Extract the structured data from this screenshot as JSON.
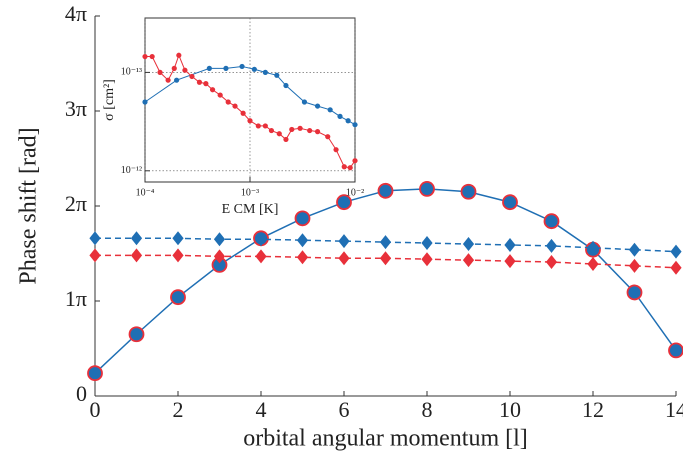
{
  "chart_data": [
    {
      "type": "line",
      "x_label": "orbital angular momentum [l]",
      "y_label": "Phase shift [rad]",
      "x": [
        0,
        1,
        2,
        3,
        4,
        5,
        6,
        7,
        8,
        9,
        10,
        11,
        12,
        13,
        14
      ],
      "xlim": [
        0,
        14
      ],
      "xticks": [
        0,
        2,
        4,
        6,
        8,
        10,
        12,
        14
      ],
      "ylim": [
        0,
        4
      ],
      "yticks": [
        0,
        {
          "value": 1,
          "label": "1π"
        },
        {
          "value": 2,
          "label": "2π"
        },
        {
          "value": 3,
          "label": "3π"
        },
        {
          "value": 4,
          "label": "4π"
        }
      ],
      "grid": false,
      "series": [
        {
          "color": "#1f6fb4",
          "edgecolor": "#e8303a",
          "marker": "circle",
          "linestyle": "solid",
          "values": [
            0.24,
            0.65,
            1.04,
            1.38,
            1.66,
            1.87,
            2.04,
            2.16,
            2.18,
            2.15,
            2.04,
            1.84,
            1.54,
            1.09,
            0.48
          ]
        },
        {
          "color": "#1f6fb4",
          "marker": "diamond",
          "linestyle": "dashed",
          "values": [
            1.66,
            1.66,
            1.66,
            1.65,
            1.65,
            1.64,
            1.63,
            1.62,
            1.61,
            1.6,
            1.59,
            1.58,
            1.56,
            1.54,
            1.52
          ]
        },
        {
          "color": "#e8303a",
          "marker": "diamond",
          "linestyle": "dashed",
          "values": [
            1.48,
            1.48,
            1.48,
            1.47,
            1.47,
            1.46,
            1.45,
            1.45,
            1.44,
            1.43,
            1.42,
            1.41,
            1.39,
            1.37,
            1.35
          ]
        }
      ]
    },
    {
      "type": "line",
      "x_label": "E CM [K]",
      "y_label": "σ [cm²]",
      "xscale": "log",
      "yscale": "log",
      "xlim": [
        0.0001,
        0.01
      ],
      "xticks": [
        {
          "value": 0.0001,
          "label": "10⁻⁴"
        },
        {
          "value": 0.001,
          "label": "10⁻³"
        },
        {
          "value": 0.01,
          "label": "10⁻²"
        }
      ],
      "ylim": [
        1.3e-12,
        2.8e-14
      ],
      "yticks": [
        {
          "value": 1e-13,
          "label": "10⁻¹³"
        },
        {
          "value": 1e-12,
          "label": "10⁻¹²"
        }
      ],
      "grid": true,
      "series": [
        {
          "color": "#1f6fb4",
          "marker": "circle",
          "linestyle": "solid",
          "x": [
            0.0001,
            0.0002,
            0.00041,
            0.00059,
            0.00084,
            0.0011,
            0.0014,
            0.0018,
            0.0022,
            0.0033,
            0.0044,
            0.0058,
            0.0072,
            0.0086,
            0.01
          ],
          "values": [
            2e-13,
            1.2e-13,
            9.1e-14,
            9.1e-14,
            8.7e-14,
            9.3e-14,
            1e-13,
            1.07e-13,
            1.36e-13,
            2e-13,
            2.2e-13,
            2.4e-13,
            2.8e-13,
            3.1e-13,
            3.4e-13
          ]
        },
        {
          "color": "#e8303a",
          "marker": "circle",
          "linestyle": "solid",
          "x": [
            0.0001,
            0.000117,
            0.000139,
            0.000166,
            0.00019,
            0.00021,
            0.00024,
            0.00028,
            0.00033,
            0.00038,
            0.00044,
            0.00052,
            0.00062,
            0.00072,
            0.00086,
            0.001,
            0.0012,
            0.0014,
            0.0016,
            0.0019,
            0.0022,
            0.0025,
            0.003,
            0.0037,
            0.0044,
            0.0055,
            0.0066,
            0.0079,
            0.009,
            0.01
          ],
          "values": [
            6.9e-14,
            6.9e-14,
            1e-13,
            1.2e-13,
            9.1e-14,
            6.7e-14,
            9.5e-14,
            1.1e-13,
            1.26e-13,
            1.3e-13,
            1.5e-13,
            1.7e-13,
            2e-13,
            2.2e-13,
            2.6e-13,
            3.1e-13,
            3.5e-13,
            3.5e-13,
            3.9e-13,
            4.2e-13,
            4.8e-13,
            3.8e-13,
            3.7e-13,
            3.9e-13,
            4e-13,
            4.5e-13,
            6.1e-13,
            9.1e-13,
            9.3e-13,
            7.9e-13
          ]
        }
      ]
    }
  ]
}
